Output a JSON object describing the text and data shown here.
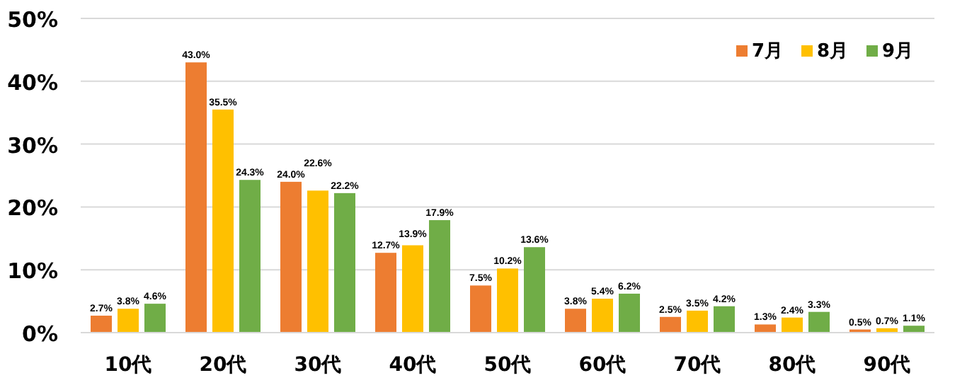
{
  "chart_data": {
    "type": "bar",
    "categories": [
      "10代",
      "20代",
      "30代",
      "40代",
      "50代",
      "60代",
      "70代",
      "80代",
      "90代"
    ],
    "series": [
      {
        "name": "7月",
        "color": "#ed7d31",
        "values": [
          2.7,
          43.0,
          24.0,
          12.7,
          7.5,
          3.8,
          2.5,
          1.3,
          0.5
        ],
        "value_labels": [
          "2.7%",
          "43.0%",
          "24.0%",
          "12.7%",
          "7.5%",
          "3.8%",
          "2.5%",
          "1.3%",
          "0.5%"
        ]
      },
      {
        "name": "8月",
        "color": "#ffc000",
        "values": [
          3.8,
          35.5,
          22.6,
          13.9,
          10.2,
          5.4,
          3.5,
          2.4,
          0.7
        ],
        "value_labels": [
          "3.8%",
          "35.5%",
          "22.6%",
          "13.9%",
          "10.2%",
          "5.4%",
          "3.5%",
          "2.4%",
          "0.7%"
        ]
      },
      {
        "name": "9月",
        "color": "#70ad47",
        "values": [
          4.6,
          24.3,
          22.2,
          17.9,
          13.6,
          6.2,
          4.2,
          3.3,
          1.1
        ],
        "value_labels": [
          "4.6%",
          "24.3%",
          "22.2%",
          "17.9%",
          "13.6%",
          "6.2%",
          "4.2%",
          "3.3%",
          "1.1%"
        ]
      }
    ],
    "ylim": [
      0,
      50
    ],
    "yticks": [
      {
        "value": 0,
        "label": "0%"
      },
      {
        "value": 10,
        "label": "10%"
      },
      {
        "value": 20,
        "label": "20%"
      },
      {
        "value": 30,
        "label": "30%"
      },
      {
        "value": 40,
        "label": "40%"
      },
      {
        "value": 50,
        "label": "50%"
      }
    ],
    "grid": "y",
    "legend": "top right"
  }
}
